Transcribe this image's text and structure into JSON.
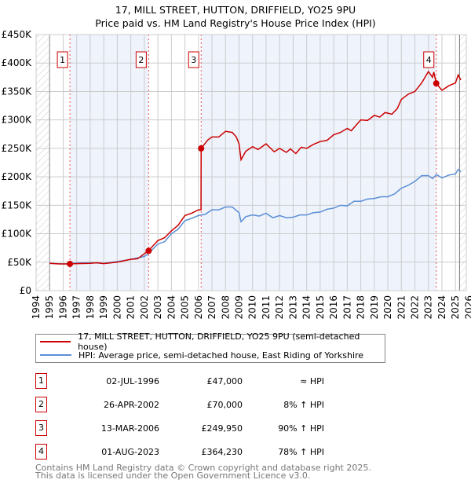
{
  "title": "17, MILL STREET, HUTTON, DRIFFIELD, YO25 9PU",
  "subtitle": "Price paid vs. HM Land Registry's House Price Index (HPI)",
  "colors": {
    "property": "#cc0000",
    "hpi": "#5b8fd6",
    "shade": "#eef3fc"
  },
  "chart_data": {
    "type": "line",
    "xlim": [
      1994,
      2025.8
    ],
    "ylim": [
      0,
      450000
    ],
    "y_ticks": [
      {
        "v": 0,
        "label": "£0"
      },
      {
        "v": 50000,
        "label": "£50K"
      },
      {
        "v": 100000,
        "label": "£100K"
      },
      {
        "v": 150000,
        "label": "£150K"
      },
      {
        "v": 200000,
        "label": "£200K"
      },
      {
        "v": 250000,
        "label": "£250K"
      },
      {
        "v": 300000,
        "label": "£300K"
      },
      {
        "v": 350000,
        "label": "£350K"
      },
      {
        "v": 400000,
        "label": "£400K"
      },
      {
        "v": 450000,
        "label": "£450K"
      }
    ],
    "x_ticks": [
      "1994",
      "1995",
      "1996",
      "1997",
      "1998",
      "1999",
      "2000",
      "2001",
      "2002",
      "2003",
      "2004",
      "2005",
      "2006",
      "2007",
      "2008",
      "2009",
      "2010",
      "2011",
      "2012",
      "2013",
      "2014",
      "2015",
      "2016",
      "2017",
      "2018",
      "2019",
      "2020",
      "2021",
      "2022",
      "2023",
      "2024",
      "2025",
      "2026"
    ],
    "series": [
      {
        "name": "17, MILL STREET, HUTTON, DRIFFIELD, YO25 9PU (semi-detached house)",
        "color": "#cc0000",
        "points": [
          [
            1995,
            48000
          ],
          [
            1995.7,
            47000
          ],
          [
            1996.5,
            47000
          ],
          [
            1997,
            47500
          ],
          [
            1998,
            48000
          ],
          [
            1998.5,
            49000
          ],
          [
            1999,
            47500
          ],
          [
            2000,
            50000
          ],
          [
            2001,
            55000
          ],
          [
            2001.5,
            56000
          ],
          [
            2002.3,
            70000
          ],
          [
            2003,
            88000
          ],
          [
            2003.5,
            93000
          ],
          [
            2004,
            105000
          ],
          [
            2004.5,
            115000
          ],
          [
            2005,
            132000
          ],
          [
            2005.5,
            136000
          ],
          [
            2006,
            142000
          ],
          [
            2006.19,
            142000
          ],
          [
            2006.2,
            249950
          ],
          [
            2006.7,
            265000
          ],
          [
            2007,
            270000
          ],
          [
            2007.5,
            270000
          ],
          [
            2008,
            280000
          ],
          [
            2008.5,
            278000
          ],
          [
            2008.8,
            270000
          ],
          [
            2009,
            258000
          ],
          [
            2009.15,
            230000
          ],
          [
            2009.5,
            245000
          ],
          [
            2010,
            253000
          ],
          [
            2010.4,
            248000
          ],
          [
            2011,
            258000
          ],
          [
            2011.6,
            244000
          ],
          [
            2012,
            250000
          ],
          [
            2012.5,
            243000
          ],
          [
            2012.8,
            249000
          ],
          [
            2013.2,
            241000
          ],
          [
            2013.6,
            252000
          ],
          [
            2014,
            250000
          ],
          [
            2014.5,
            257000
          ],
          [
            2015,
            262000
          ],
          [
            2015.5,
            264000
          ],
          [
            2016,
            274000
          ],
          [
            2016.5,
            278000
          ],
          [
            2017,
            285000
          ],
          [
            2017.3,
            281000
          ],
          [
            2018,
            300000
          ],
          [
            2018.5,
            299000
          ],
          [
            2019,
            308000
          ],
          [
            2019.4,
            305000
          ],
          [
            2019.8,
            313000
          ],
          [
            2020.3,
            310000
          ],
          [
            2020.7,
            320000
          ],
          [
            2021,
            336000
          ],
          [
            2021.5,
            345000
          ],
          [
            2022,
            350000
          ],
          [
            2022.5,
            365000
          ],
          [
            2023,
            385000
          ],
          [
            2023.3,
            375000
          ],
          [
            2023.4,
            384000
          ],
          [
            2023.58,
            364230
          ],
          [
            2024,
            352000
          ],
          [
            2024.5,
            360000
          ],
          [
            2025,
            365000
          ],
          [
            2025.2,
            379000
          ],
          [
            2025.4,
            370000
          ]
        ]
      },
      {
        "name": "HPI: Average price, semi-detached house, East Riding of Yorkshire",
        "color": "#5b8fd6",
        "points": [
          [
            1995,
            48000
          ],
          [
            1996,
            47000
          ],
          [
            1996.5,
            47500
          ],
          [
            1997,
            48500
          ],
          [
            1998,
            49000
          ],
          [
            1999,
            48000
          ],
          [
            2000,
            51000
          ],
          [
            2001,
            55000
          ],
          [
            2002,
            60000
          ],
          [
            2002.3,
            65000
          ],
          [
            2003,
            82000
          ],
          [
            2003.5,
            86000
          ],
          [
            2004,
            100000
          ],
          [
            2004.5,
            108000
          ],
          [
            2005,
            123000
          ],
          [
            2005.5,
            127000
          ],
          [
            2006,
            132000
          ],
          [
            2006.5,
            134000
          ],
          [
            2007,
            142000
          ],
          [
            2007.5,
            142000
          ],
          [
            2008,
            147000
          ],
          [
            2008.5,
            147000
          ],
          [
            2009,
            137000
          ],
          [
            2009.15,
            121000
          ],
          [
            2009.5,
            130000
          ],
          [
            2010,
            133000
          ],
          [
            2010.5,
            131000
          ],
          [
            2011,
            136000
          ],
          [
            2011.5,
            128000
          ],
          [
            2012,
            132000
          ],
          [
            2012.5,
            128000
          ],
          [
            2013,
            129000
          ],
          [
            2013.5,
            133000
          ],
          [
            2014,
            133000
          ],
          [
            2014.5,
            137000
          ],
          [
            2015,
            138000
          ],
          [
            2015.5,
            143000
          ],
          [
            2016,
            145000
          ],
          [
            2016.5,
            150000
          ],
          [
            2017,
            149000
          ],
          [
            2017.5,
            157000
          ],
          [
            2018,
            157000
          ],
          [
            2018.5,
            161000
          ],
          [
            2019,
            162000
          ],
          [
            2019.5,
            165000
          ],
          [
            2020,
            165000
          ],
          [
            2020.5,
            170000
          ],
          [
            2021,
            180000
          ],
          [
            2021.5,
            185000
          ],
          [
            2022,
            192000
          ],
          [
            2022.5,
            202000
          ],
          [
            2023,
            202000
          ],
          [
            2023.3,
            197000
          ],
          [
            2023.6,
            204000
          ],
          [
            2024,
            198000
          ],
          [
            2024.5,
            203000
          ],
          [
            2025,
            205000
          ],
          [
            2025.2,
            213000
          ],
          [
            2025.4,
            209000
          ]
        ]
      }
    ],
    "sales": [
      {
        "label": "1",
        "x": 1996.5,
        "price": 47000
      },
      {
        "label": "2",
        "x": 2002.32,
        "price": 70000
      },
      {
        "label": "3",
        "x": 2006.2,
        "price": 249950
      },
      {
        "label": "4",
        "x": 2023.58,
        "price": 364230
      }
    ]
  },
  "legend": {
    "property": "17, MILL STREET, HUTTON, DRIFFIELD, YO25 9PU (semi-detached house)",
    "hpi": "HPI: Average price, semi-detached house, East Riding of Yorkshire"
  },
  "transactions": [
    {
      "num": "1",
      "date": "02-JUL-1996",
      "price": "£47,000",
      "hpi": "≈ HPI"
    },
    {
      "num": "2",
      "date": "26-APR-2002",
      "price": "£70,000",
      "hpi": "8% ↑ HPI"
    },
    {
      "num": "3",
      "date": "13-MAR-2006",
      "price": "£249,950",
      "hpi": "90% ↑ HPI"
    },
    {
      "num": "4",
      "date": "01-AUG-2023",
      "price": "£364,230",
      "hpi": "78% ↑ HPI"
    }
  ],
  "footer": {
    "line1": "Contains HM Land Registry data © Crown copyright and database right 2025.",
    "line2": "This data is licensed under the Open Government Licence v3.0."
  }
}
